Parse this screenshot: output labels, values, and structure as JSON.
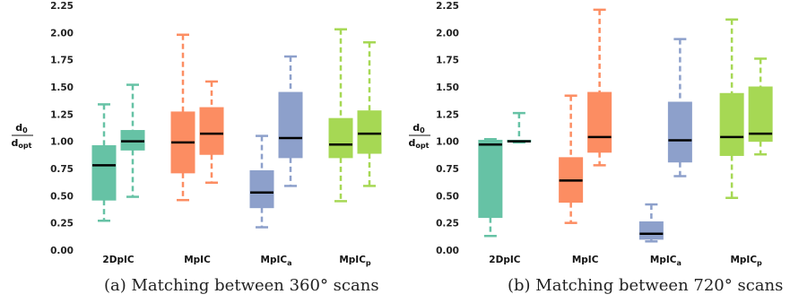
{
  "y_label_num": "d",
  "y_label_num_sub": "0",
  "y_label_den": "d",
  "y_label_den_sub": "opt",
  "colors": [
    "#66c2a5",
    "#fc8d62",
    "#8da0cb",
    "#a6d854"
  ],
  "chart_data": [
    {
      "type": "box",
      "caption": "(a) Matching between 360° scans",
      "ylim": [
        0,
        2.25
      ],
      "yticks": [
        "0.00",
        "0.25",
        "0.50",
        "0.75",
        "1.00",
        "1.25",
        "1.50",
        "1.75",
        "2.00",
        "2.25"
      ],
      "grid": false,
      "categories": [
        {
          "label": "2DpIC",
          "sub": ""
        },
        {
          "label": "MpIC",
          "sub": ""
        },
        {
          "label": "MpIC",
          "sub": "a"
        },
        {
          "label": "MpIC",
          "sub": "p"
        }
      ],
      "boxes": [
        [
          {
            "whislo": 0.27,
            "q1": 0.46,
            "med": 0.78,
            "q3": 0.96,
            "whishi": 1.34
          },
          {
            "whislo": 0.49,
            "q1": 0.92,
            "med": 1.0,
            "q3": 1.1,
            "whishi": 1.52
          }
        ],
        [
          {
            "whislo": 0.46,
            "q1": 0.71,
            "med": 0.99,
            "q3": 1.27,
            "whishi": 1.98
          },
          {
            "whislo": 0.62,
            "q1": 0.88,
            "med": 1.07,
            "q3": 1.31,
            "whishi": 1.55
          }
        ],
        [
          {
            "whislo": 0.21,
            "q1": 0.39,
            "med": 0.53,
            "q3": 0.73,
            "whishi": 1.05
          },
          {
            "whislo": 0.59,
            "q1": 0.85,
            "med": 1.03,
            "q3": 1.45,
            "whishi": 1.78
          }
        ],
        [
          {
            "whislo": 0.45,
            "q1": 0.85,
            "med": 0.97,
            "q3": 1.21,
            "whishi": 2.03
          },
          {
            "whislo": 0.59,
            "q1": 0.89,
            "med": 1.07,
            "q3": 1.28,
            "whishi": 1.91
          }
        ]
      ]
    },
    {
      "type": "box",
      "caption": "(b) Matching between 720° scans",
      "ylim": [
        0,
        2.25
      ],
      "yticks": [
        "0.00",
        "0.25",
        "0.50",
        "0.75",
        "1.00",
        "1.25",
        "1.50",
        "1.75",
        "2.00",
        "2.25"
      ],
      "grid": false,
      "categories": [
        {
          "label": "2DpIC",
          "sub": ""
        },
        {
          "label": "MpIC",
          "sub": ""
        },
        {
          "label": "MpIC",
          "sub": "a"
        },
        {
          "label": "MpIC",
          "sub": "p"
        }
      ],
      "boxes": [
        [
          {
            "whislo": 0.13,
            "q1": 0.3,
            "med": 0.97,
            "q3": 1.01,
            "whishi": 1.02
          },
          {
            "whislo": 0.99,
            "q1": 0.995,
            "med": 1.0,
            "q3": 1.01,
            "whishi": 1.26
          }
        ],
        [
          {
            "whislo": 0.25,
            "q1": 0.44,
            "med": 0.64,
            "q3": 0.85,
            "whishi": 1.42
          },
          {
            "whislo": 0.78,
            "q1": 0.9,
            "med": 1.04,
            "q3": 1.45,
            "whishi": 2.21
          }
        ],
        [
          {
            "whislo": 0.08,
            "q1": 0.1,
            "med": 0.15,
            "q3": 0.26,
            "whishi": 0.42
          },
          {
            "whislo": 0.68,
            "q1": 0.81,
            "med": 1.01,
            "q3": 1.36,
            "whishi": 1.94
          }
        ],
        [
          {
            "whislo": 0.48,
            "q1": 0.87,
            "med": 1.04,
            "q3": 1.44,
            "whishi": 2.12
          },
          {
            "whislo": 0.88,
            "q1": 1.0,
            "med": 1.07,
            "q3": 1.5,
            "whishi": 1.76
          }
        ]
      ]
    }
  ]
}
